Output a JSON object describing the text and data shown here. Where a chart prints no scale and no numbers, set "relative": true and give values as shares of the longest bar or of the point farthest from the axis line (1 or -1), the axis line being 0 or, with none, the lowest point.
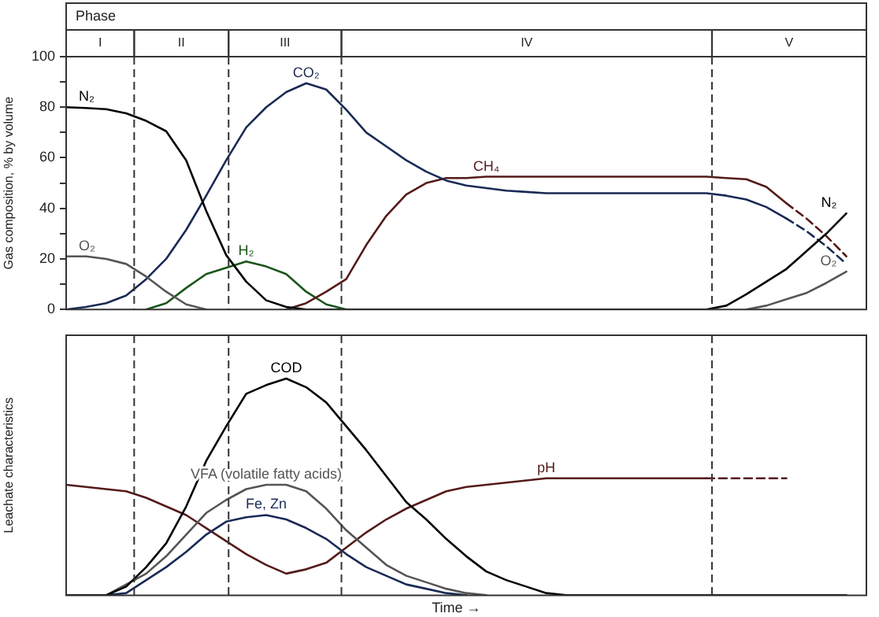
{
  "chart_data": [
    {
      "type": "line",
      "title": "Phase",
      "ylabel": "Gas composition, % by volume",
      "annotations": [
        "I",
        "II",
        "III",
        "IV",
        "V"
      ],
      "categories": [
        null,
        null,
        null,
        null,
        null,
        null,
        null,
        null,
        null,
        null,
        null,
        null,
        null,
        null,
        null,
        null,
        null,
        null,
        null,
        null,
        null,
        null,
        null,
        null,
        null,
        null,
        null,
        null,
        null,
        null,
        null,
        null,
        null,
        null,
        null,
        null,
        null,
        null,
        null,
        null
      ],
      "ylim": [
        0,
        100
      ],
      "yticks": [
        0,
        {
          "value": 10,
          "label": null
        },
        20,
        {
          "value": 30,
          "label": null
        },
        40,
        {
          "value": 50,
          "label": null
        },
        60,
        {
          "value": 70,
          "label": null
        },
        80,
        {
          "value": 90,
          "label": null
        },
        100
      ],
      "tick_labels": "y",
      "grid": false,
      "legend": false,
      "marker": "none",
      "line_style": "solid",
      "series": [
        {
          "name": "N₂",
          "color": "#000000",
          "values": [
            80,
            79.7,
            79.2,
            77.6,
            74.6,
            70.5,
            59,
            39,
            21.5,
            11,
            3.6,
            1,
            0,
            0,
            0,
            0,
            0,
            0,
            0,
            0,
            0,
            0,
            0,
            0,
            0,
            0,
            0,
            0,
            0,
            0,
            0,
            0,
            0,
            1.5,
            6,
            11,
            16,
            23,
            30,
            38
          ]
        },
        {
          "name": "O₂",
          "color": "#555555",
          "values": [
            21,
            21,
            20,
            18,
            13,
            7,
            2,
            0,
            null,
            null,
            null,
            null,
            null,
            null,
            null,
            null,
            null,
            null,
            null,
            null,
            null,
            null,
            null,
            null,
            null,
            null,
            null,
            null,
            null,
            null,
            null,
            null,
            null,
            null,
            0,
            1.5,
            4,
            6.5,
            10.5,
            15
          ]
        },
        {
          "name": "CO₂",
          "color": "#1a2a55",
          "values": [
            0,
            1,
            2.5,
            5.5,
            12,
            20,
            31.5,
            45,
            59,
            72,
            80,
            86,
            89.5,
            87,
            79,
            70,
            64.5,
            59,
            54.5,
            51,
            49,
            48,
            47,
            46.5,
            46,
            46,
            46,
            46,
            46,
            46,
            46,
            46,
            46,
            45,
            43.5,
            40.5,
            36,
            null,
            null,
            null
          ]
        },
        {
          "color": "#1a2a55",
          "line_style": "dashed",
          "values": [
            null,
            null,
            null,
            null,
            null,
            null,
            null,
            null,
            null,
            null,
            null,
            null,
            null,
            null,
            null,
            null,
            null,
            null,
            null,
            null,
            null,
            null,
            null,
            null,
            null,
            null,
            null,
            null,
            null,
            null,
            null,
            null,
            null,
            null,
            null,
            null,
            36,
            31,
            25,
            18
          ]
        },
        {
          "name": "CH₄",
          "color": "#551a1a",
          "values": [
            null,
            null,
            null,
            null,
            null,
            null,
            null,
            null,
            null,
            null,
            null,
            0,
            2.5,
            7,
            12,
            25.5,
            37,
            45.5,
            50,
            52,
            52,
            52.5,
            52.5,
            52.5,
            52.5,
            52.5,
            52.5,
            52.5,
            52.5,
            52.5,
            52.5,
            52.5,
            52.5,
            52,
            51.5,
            48.5,
            42,
            null,
            null,
            null
          ]
        },
        {
          "color": "#551a1a",
          "line_style": "dashed",
          "values": [
            null,
            null,
            null,
            null,
            null,
            null,
            null,
            null,
            null,
            null,
            null,
            null,
            null,
            null,
            null,
            null,
            null,
            null,
            null,
            null,
            null,
            null,
            null,
            null,
            null,
            null,
            null,
            null,
            null,
            null,
            null,
            null,
            null,
            null,
            null,
            null,
            42,
            36,
            29,
            21
          ]
        },
        {
          "name": "H₂",
          "color": "#1a551a",
          "values": [
            null,
            null,
            null,
            null,
            0,
            2.5,
            8.5,
            14,
            16.5,
            19,
            17,
            14,
            7,
            2,
            0,
            null,
            null,
            null,
            null,
            null,
            null,
            null,
            null,
            null,
            null,
            null,
            null,
            null,
            null,
            null,
            null,
            null,
            null,
            null,
            null,
            null,
            null,
            null,
            null,
            null
          ]
        }
      ]
    },
    {
      "type": "line",
      "relative": true,
      "ylabel": "Leachate characteristics",
      "xlabel": "Time →",
      "categories": [
        null,
        null,
        null,
        null,
        null,
        null,
        null,
        null,
        null,
        null,
        null,
        null,
        null,
        null,
        null,
        null,
        null,
        null,
        null,
        null,
        null,
        null,
        null,
        null,
        null,
        null,
        null,
        null,
        null,
        null,
        null,
        null,
        null,
        null,
        null,
        null,
        null,
        null,
        null,
        null
      ],
      "tick_labels": false,
      "grid": false,
      "legend": false,
      "marker": "none",
      "line_style": "solid",
      "series": [
        {
          "name": "COD",
          "color": "#000000",
          "values": [
            0,
            0,
            0,
            0.04,
            0.13,
            0.24,
            0.41,
            0.62,
            0.78,
            0.93,
            0.97,
            1,
            0.96,
            0.89,
            0.78,
            0.67,
            0.55,
            0.43,
            0.35,
            0.26,
            0.18,
            0.11,
            0.07,
            0.04,
            0.01,
            0,
            0,
            0,
            0,
            0,
            0,
            0,
            0,
            0,
            0,
            0,
            0,
            0,
            0,
            0
          ]
        },
        {
          "name": "VFA (volatile fatty acids)",
          "color": "#555555",
          "values": [
            null,
            null,
            0,
            0.05,
            0.1,
            0.18,
            0.28,
            0.38,
            0.44,
            0.49,
            0.51,
            0.51,
            0.48,
            0.4,
            0.3,
            0.22,
            0.14,
            0.09,
            0.06,
            0.03,
            0.01,
            0,
            null,
            null,
            null,
            null,
            null,
            null,
            null,
            null,
            null,
            null,
            null,
            null,
            null,
            null,
            null,
            null,
            null,
            null
          ]
        },
        {
          "name": "Fe, Zn",
          "color": "#1a2a55",
          "values": [
            null,
            null,
            0,
            0.01,
            0.07,
            0.13,
            0.2,
            0.28,
            0.34,
            0.36,
            0.37,
            0.35,
            0.31,
            0.26,
            0.19,
            0.13,
            0.09,
            0.05,
            0.03,
            0.01,
            0,
            null,
            null,
            null,
            null,
            null,
            null,
            null,
            null,
            null,
            null,
            null,
            null,
            null,
            null,
            null,
            null,
            null,
            null,
            null
          ]
        },
        {
          "name": "pH",
          "color": "#551a1a",
          "values": [
            0.51,
            0.5,
            0.49,
            0.48,
            0.45,
            0.41,
            0.37,
            0.31,
            0.25,
            0.19,
            0.14,
            0.1,
            0.12,
            0.15,
            0.22,
            0.29,
            0.35,
            0.4,
            0.44,
            0.48,
            0.5,
            0.51,
            0.52,
            0.53,
            0.54,
            0.54,
            0.54,
            0.54,
            0.54,
            0.54,
            0.54,
            0.54,
            0.54,
            null,
            null,
            null,
            null,
            null,
            null,
            null
          ]
        },
        {
          "color": "#551a1a",
          "line_style": "dashed",
          "values": [
            null,
            null,
            null,
            null,
            null,
            null,
            null,
            null,
            null,
            null,
            null,
            null,
            null,
            null,
            null,
            null,
            null,
            null,
            null,
            null,
            null,
            null,
            null,
            null,
            null,
            null,
            null,
            null,
            null,
            null,
            null,
            null,
            0.54,
            0.54,
            0.54,
            0.54,
            0.54,
            null,
            null,
            null
          ]
        }
      ]
    }
  ]
}
